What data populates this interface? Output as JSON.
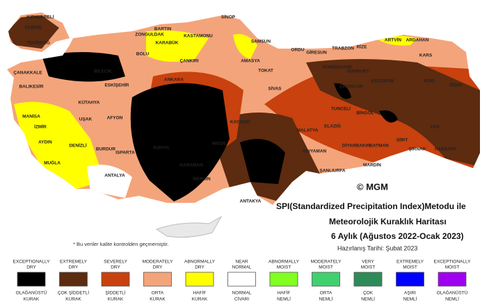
{
  "map": {
    "title_lines": [
      "SPI(Standardized Precipitation Index)Metodu ile",
      "Meteorolojik Kuraklık Haritası",
      "6 Aylık (Ağustos 2022-Ocak 2023)"
    ],
    "date": "Hazırlanış Tarihi: Şubat 2023",
    "credit": "© MGM",
    "note": "* Bu veriler kalite kontrolden geçmemiştir.",
    "provinces": [
      "KIRKLARELİ",
      "EDİRNE",
      "TEKİRDAĞ",
      "SİNOP",
      "BARTIN",
      "ZONGULDAK",
      "KASTAMONU",
      "KARABÜK",
      "SAMSUN",
      "ORDU",
      "GİRESUN",
      "TRABZON",
      "RİZE",
      "ARTVİN",
      "ARDAHAN",
      "KARS",
      "BOLU",
      "ÇANKIRI",
      "AMASYA",
      "TOKAT",
      "GÜMÜŞHANE",
      "BAYBURT",
      "ERZURUM",
      "AĞRI",
      "IĞDIR",
      "ÇANAKKALE",
      "BİLECİK",
      "ESKİŞEHİR",
      "ANKARA",
      "SİVAS",
      "ERZİNCAN",
      "BALIKESİR",
      "KÜTAHYA",
      "TUNCELİ",
      "BİNGÖL",
      "MANİSA",
      "UŞAK",
      "AFYON",
      "KAYSERİ",
      "MALATYA",
      "ELAZIĞ",
      "VAN",
      "İZMİR",
      "DENİZLİ",
      "AYDIN",
      "BURDUR",
      "ISPARTA",
      "KONYA",
      "NİĞDE",
      "DİYARBAKIR",
      "BATMAN",
      "SİİRT",
      "ŞIRNAK",
      "HAKKARİ",
      "MUĞLA",
      "ADIYAMAN",
      "MARDİN",
      "ŞANLIURFA",
      "ANTALYA",
      "KARAMAN",
      "MERSİN",
      "ANTAKYA"
    ],
    "legend": [
      {
        "en": [
          "EXCEPTIONALLY",
          "DRY"
        ],
        "tr": [
          "OLAĞANÜSTÜ",
          "KURAK"
        ],
        "color": "#000000"
      },
      {
        "en": [
          "EXTREMELY",
          "DRY"
        ],
        "tr": [
          "ÇOK ŞİDDETLİ",
          "KURAK"
        ],
        "color": "#5c2b10"
      },
      {
        "en": [
          "SEVERELY",
          "DRY"
        ],
        "tr": [
          "ŞİDDETLİ",
          "KURAK"
        ],
        "color": "#c8410e"
      },
      {
        "en": [
          "MODERATELY",
          "DRY"
        ],
        "tr": [
          "ORTA",
          "KURAK"
        ],
        "color": "#f4a47a"
      },
      {
        "en": [
          "ABNORMALLY",
          "DRY"
        ],
        "tr": [
          "HAFİF",
          "KURAK"
        ],
        "color": "#ffff00"
      },
      {
        "en": [
          "NEAR",
          "NORMAL"
        ],
        "tr": [
          "NORMAL",
          "CİVARI"
        ],
        "color": "#ffffff"
      },
      {
        "en": [
          "ABNORMALLY",
          "MOIST"
        ],
        "tr": [
          "HAFİF",
          "NEMLİ"
        ],
        "color": "#80ff20"
      },
      {
        "en": [
          "MODERATELY",
          "MOIST"
        ],
        "tr": [
          "ORTA",
          "NEMLİ"
        ],
        "color": "#40d070"
      },
      {
        "en": [
          "VERY",
          "MOIST"
        ],
        "tr": [
          "ÇOK",
          "NEMLİ"
        ],
        "color": "#2e8b57"
      },
      {
        "en": [
          "EXTREMELY",
          "MOIST"
        ],
        "tr": [
          "AŞIRI",
          "NEMLİ"
        ],
        "color": "#0000ff"
      },
      {
        "en": [
          "EXCEPTIONALLY",
          "MOIST"
        ],
        "tr": [
          "OLAĞANÜSTÜ",
          "NEMLİ"
        ],
        "color": "#a000f0"
      }
    ]
  }
}
